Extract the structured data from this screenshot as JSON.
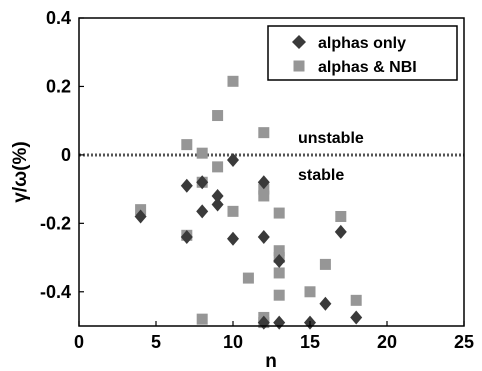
{
  "chart_data": {
    "type": "scatter",
    "xlabel": "n",
    "ylabel": "γ/ω(%)",
    "xlim": [
      0,
      25
    ],
    "ylim": [
      -0.5,
      0.4
    ],
    "xticks": [
      "0",
      "5",
      "10",
      "15",
      "20",
      "25"
    ],
    "yticks": [
      "0.4",
      "0.2",
      "0",
      "-0.2",
      "-0.4"
    ],
    "grid": false,
    "legend_position": "top-right",
    "reference_line": {
      "y": 0,
      "style": "dotted"
    },
    "annotations": [
      {
        "text": "unstable",
        "x": 14.2,
        "y": 0.04
      },
      {
        "text": "stable",
        "x": 14.2,
        "y": -0.065
      }
    ],
    "series": [
      {
        "name": "alphas only",
        "marker": "diamond",
        "color": "#3a3a3a",
        "points": [
          [
            4,
            -0.18
          ],
          [
            7,
            -0.09
          ],
          [
            7,
            -0.24
          ],
          [
            8,
            -0.08
          ],
          [
            8,
            -0.165
          ],
          [
            9,
            -0.12
          ],
          [
            9,
            -0.145
          ],
          [
            10,
            -0.015
          ],
          [
            10,
            -0.245
          ],
          [
            12,
            -0.08
          ],
          [
            12,
            -0.24
          ],
          [
            12,
            -0.49
          ],
          [
            13,
            -0.31
          ],
          [
            13,
            -0.49
          ],
          [
            15,
            -0.49
          ],
          [
            16,
            -0.435
          ],
          [
            17,
            -0.225
          ],
          [
            18,
            -0.475
          ]
        ]
      },
      {
        "name": "alphas & NBI",
        "marker": "square",
        "color": "#969696",
        "points": [
          [
            4,
            -0.16
          ],
          [
            7,
            0.03
          ],
          [
            7,
            -0.235
          ],
          [
            8,
            0.005
          ],
          [
            8,
            -0.08
          ],
          [
            8,
            -0.48
          ],
          [
            9,
            0.115
          ],
          [
            9,
            -0.035
          ],
          [
            10,
            0.215
          ],
          [
            10,
            -0.165
          ],
          [
            11,
            -0.36
          ],
          [
            12,
            0.065
          ],
          [
            12,
            -0.1
          ],
          [
            12,
            -0.12
          ],
          [
            12,
            -0.475
          ],
          [
            12,
            -0.49
          ],
          [
            13,
            -0.17
          ],
          [
            13,
            -0.28
          ],
          [
            13,
            -0.3
          ],
          [
            13,
            -0.345
          ],
          [
            13,
            -0.41
          ],
          [
            15,
            -0.4
          ],
          [
            16,
            -0.32
          ],
          [
            17,
            -0.18
          ],
          [
            18,
            -0.425
          ]
        ]
      }
    ]
  }
}
